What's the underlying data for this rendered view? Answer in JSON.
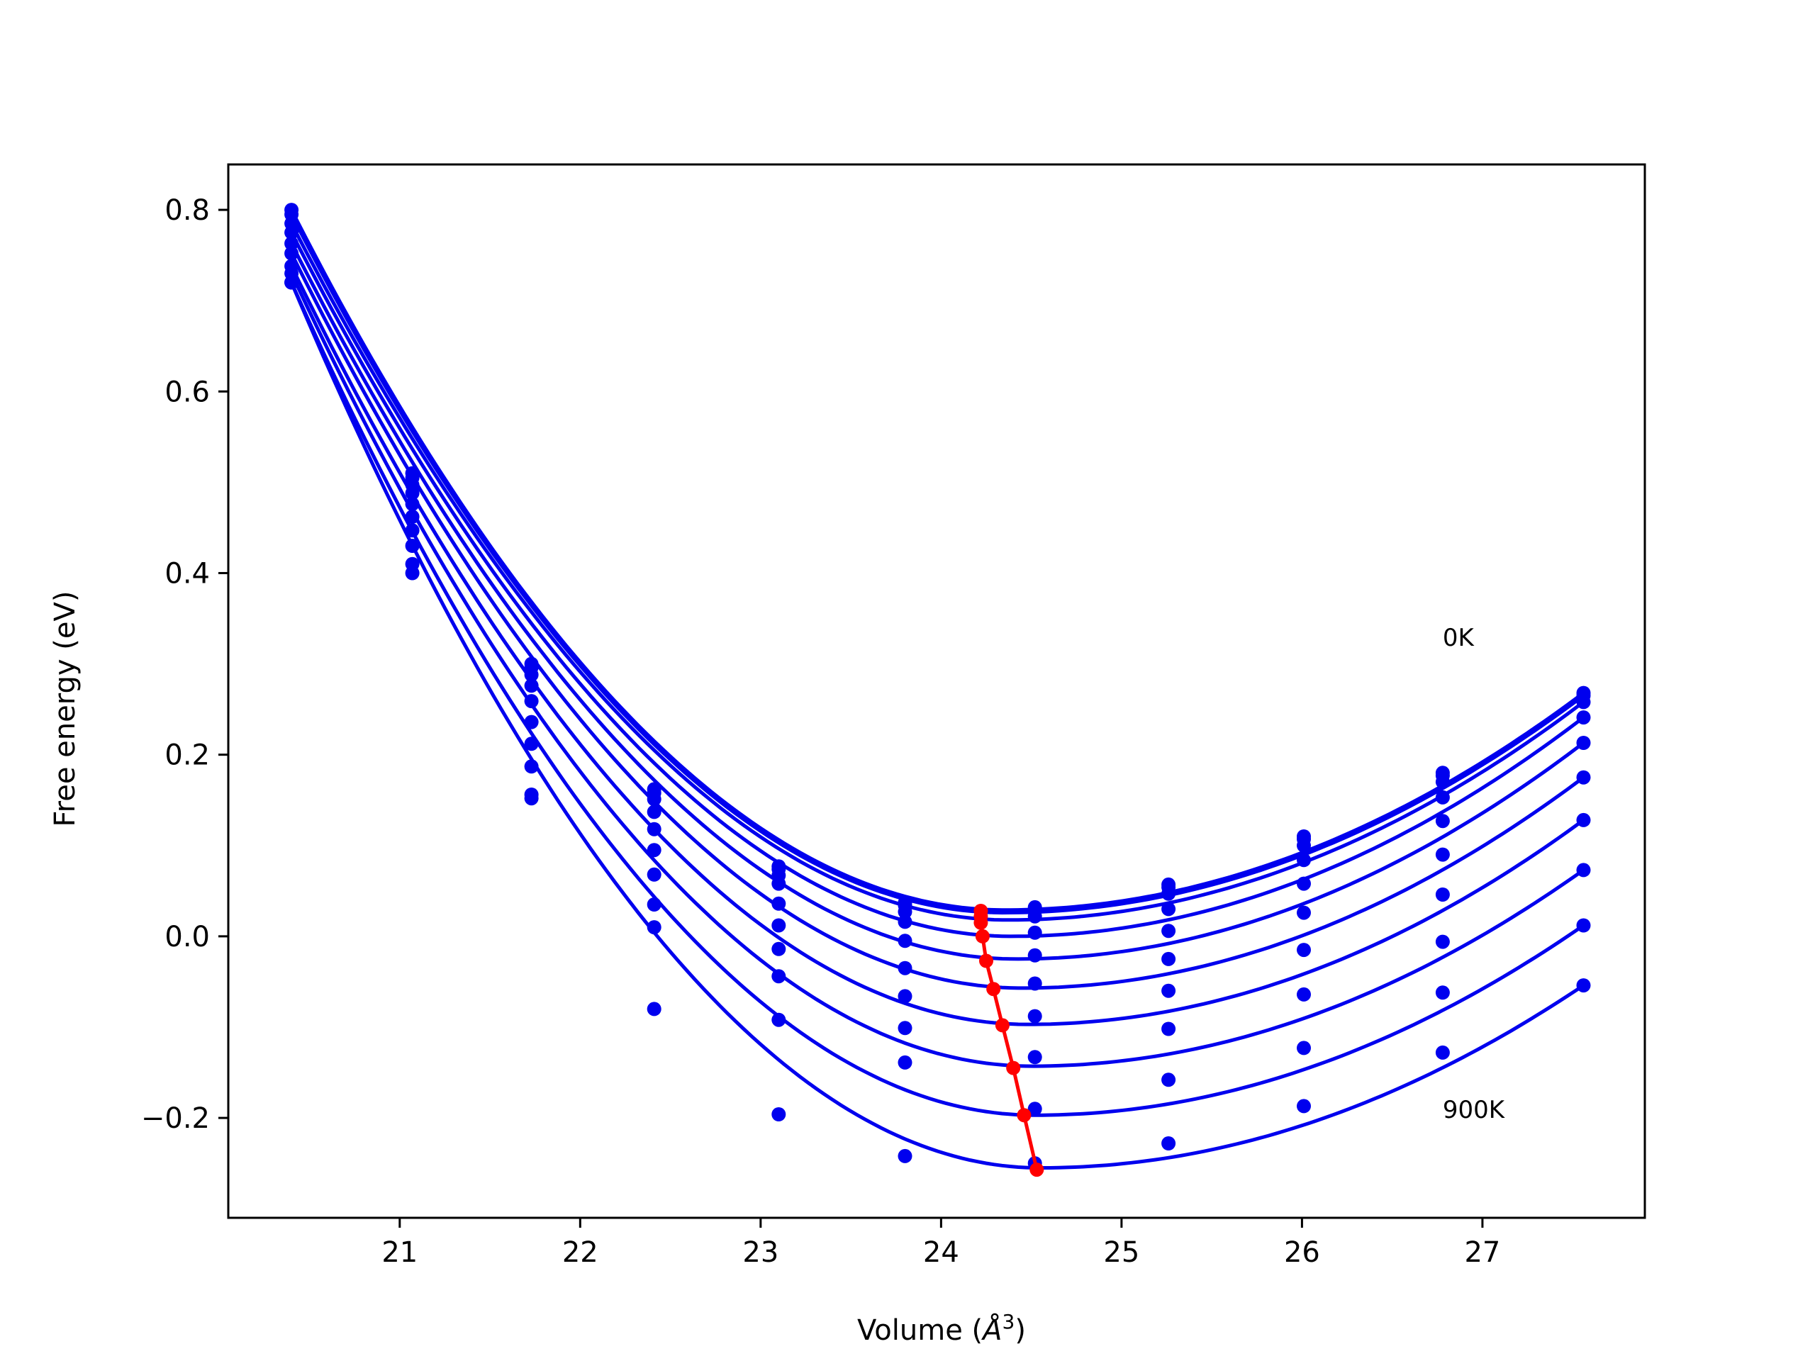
{
  "chart_data": {
    "type": "line",
    "title": "",
    "xlabel": "Volume (Å³)",
    "xlabel_parts": {
      "text": "Volume (",
      "sym": "Å",
      "sup": "3",
      "close": ")"
    },
    "ylabel": "Free energy (eV)",
    "xlim": [
      20.05,
      27.9
    ],
    "ylim": [
      -0.31,
      0.85
    ],
    "xticks": [
      21,
      22,
      23,
      24,
      25,
      26,
      27
    ],
    "yticks": [
      -0.2,
      0.0,
      0.2,
      0.4,
      0.6,
      0.8
    ],
    "ytick_labels": [
      "−0.2",
      "0.0",
      "0.2",
      "0.4",
      "0.6",
      "0.8"
    ],
    "grid": false,
    "legend": "none",
    "colors": {
      "curves": "#0000ee",
      "equilibrium": "#ff0000"
    },
    "annotations": [
      {
        "text": "0K",
        "x": 26.78,
        "y": 0.32
      },
      {
        "text": "900K",
        "x": 26.78,
        "y": -0.2
      }
    ],
    "volumes": [
      20.4,
      21.07,
      21.73,
      22.41,
      23.1,
      23.8,
      24.52,
      25.26,
      26.01,
      26.78,
      27.56
    ],
    "series": [
      {
        "temperature_K": 0,
        "values": [
          0.8,
          0.51,
          0.3,
          0.162,
          0.077,
          0.037,
          0.032,
          0.057,
          0.11,
          0.18,
          0.268
        ]
      },
      {
        "temperature_K": 100,
        "values": [
          0.795,
          0.505,
          0.296,
          0.158,
          0.074,
          0.034,
          0.029,
          0.054,
          0.107,
          0.177,
          0.265
        ]
      },
      {
        "temperature_K": 200,
        "values": [
          0.785,
          0.497,
          0.288,
          0.151,
          0.067,
          0.027,
          0.022,
          0.047,
          0.1,
          0.17,
          0.258
        ]
      },
      {
        "temperature_K": 300,
        "values": [
          0.775,
          0.488,
          0.276,
          0.137,
          0.058,
          0.016,
          0.004,
          0.03,
          0.084,
          0.153,
          0.241
        ]
      },
      {
        "temperature_K": 400,
        "values": [
          0.763,
          0.476,
          0.259,
          0.118,
          0.036,
          -0.005,
          -0.021,
          0.006,
          0.058,
          0.127,
          0.213
        ]
      },
      {
        "temperature_K": 500,
        "values": [
          0.752,
          0.462,
          0.236,
          0.095,
          0.012,
          -0.035,
          -0.052,
          -0.025,
          0.026,
          0.09,
          0.175
        ]
      },
      {
        "temperature_K": 600,
        "values": [
          0.738,
          0.447,
          0.212,
          0.068,
          -0.014,
          -0.066,
          -0.088,
          -0.06,
          -0.015,
          0.046,
          0.128
        ]
      },
      {
        "temperature_K": 700,
        "values": [
          0.73,
          0.43,
          0.187,
          0.035,
          -0.044,
          -0.101,
          -0.133,
          -0.102,
          -0.064,
          -0.006,
          0.073
        ]
      },
      {
        "temperature_K": 800,
        "values": [
          0.72,
          0.41,
          0.156,
          0.01,
          -0.092,
          -0.139,
          -0.19,
          -0.158,
          -0.123,
          -0.062,
          0.012
        ]
      },
      {
        "temperature_K": 900,
        "values": [
          0.72,
          0.4,
          0.152,
          -0.08,
          -0.196,
          -0.242,
          -0.25,
          -0.228,
          -0.187,
          -0.128,
          -0.054
        ]
      }
    ],
    "fit_minima": [
      {
        "temperature_K": 0,
        "volume": 24.35,
        "energy": 0.029
      },
      {
        "temperature_K": 100,
        "volume": 24.35,
        "energy": 0.026
      },
      {
        "temperature_K": 200,
        "volume": 24.37,
        "energy": 0.018
      },
      {
        "temperature_K": 300,
        "volume": 24.39,
        "energy": 0.0
      },
      {
        "temperature_K": 400,
        "volume": 24.42,
        "energy": -0.025
      },
      {
        "temperature_K": 500,
        "volume": 24.45,
        "energy": -0.057
      },
      {
        "temperature_K": 600,
        "volume": 24.48,
        "energy": -0.097
      },
      {
        "temperature_K": 700,
        "volume": 24.5,
        "energy": -0.143
      },
      {
        "temperature_K": 800,
        "volume": 24.52,
        "energy": -0.197
      },
      {
        "temperature_K": 900,
        "volume": 24.55,
        "energy": -0.255
      }
    ],
    "equilibrium": {
      "volume": [
        24.22,
        24.22,
        24.22,
        24.23,
        24.25,
        24.29,
        24.34,
        24.4,
        24.46,
        24.53
      ],
      "energy": [
        0.028,
        0.022,
        0.015,
        0.0,
        -0.027,
        -0.058,
        -0.098,
        -0.145,
        -0.197,
        -0.257
      ]
    }
  }
}
